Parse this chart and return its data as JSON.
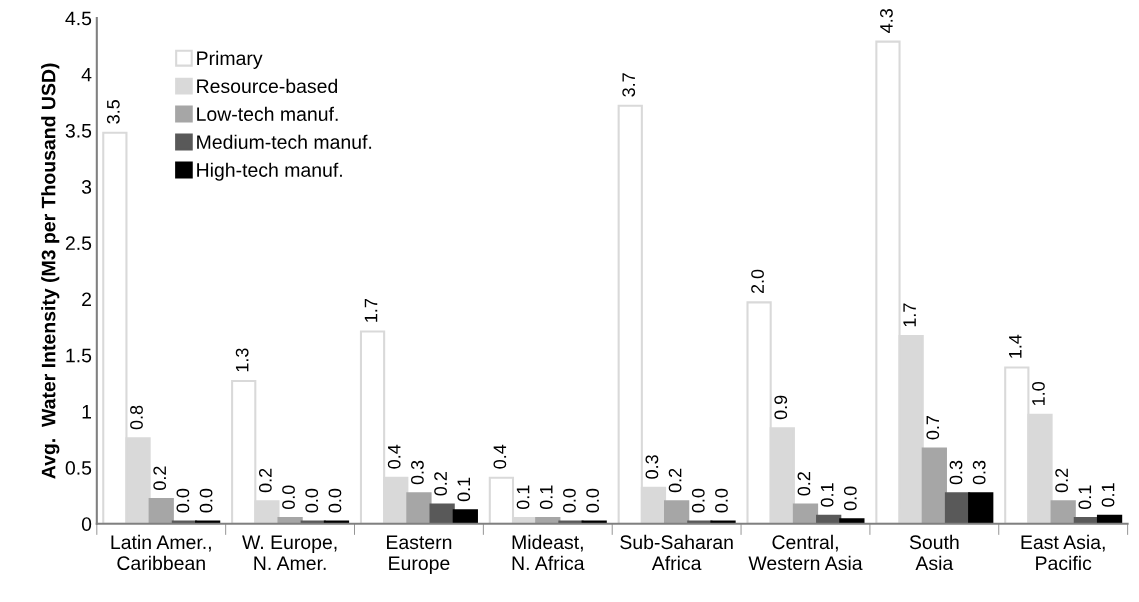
{
  "chart_data": {
    "type": "bar",
    "ylabel": "Avg.  Water Intensity (M3 per Thousand USD)",
    "categories": [
      "Latin Amer., Caribbean",
      "W. Europe, N. Amer.",
      "Eastern Europe",
      "Mideast, N. Africa",
      "Sub-Saharan Africa",
      "Central, Western Asia",
      "South Asia",
      "East Asia, Pacific"
    ],
    "series": [
      {
        "name": "Primary",
        "color": "#ffffff",
        "values": [
          3.48,
          1.27,
          1.71,
          0.41,
          3.72,
          1.97,
          4.29,
          1.39
        ],
        "value_labels": [
          "3.5",
          "1.3",
          "1.7",
          "0.4",
          "3.7",
          "2.0",
          "4.3",
          "1.4"
        ]
      },
      {
        "name": "Resource-based",
        "color": "#d9d9d9",
        "values": [
          0.76,
          0.2,
          0.41,
          0.05,
          0.32,
          0.85,
          1.67,
          0.97
        ],
        "value_labels": [
          "0.8",
          "0.2",
          "0.4",
          "0.1",
          "0.3",
          "0.9",
          "1.7",
          "1.0"
        ]
      },
      {
        "name": "Low-tech manuf.",
        "color": "#a6a6a6",
        "values": [
          0.22,
          0.05,
          0.27,
          0.05,
          0.2,
          0.17,
          0.67,
          0.2
        ],
        "value_labels": [
          "0.2",
          "0.0",
          "0.3",
          "0.1",
          "0.2",
          "0.2",
          "0.7",
          "0.2"
        ]
      },
      {
        "name": "Medium-tech manuf.",
        "color": "#595959",
        "values": [
          0.02,
          0.02,
          0.17,
          0.02,
          0.02,
          0.07,
          0.27,
          0.05
        ],
        "value_labels": [
          "0.0",
          "0.0",
          "0.2",
          "0.0",
          "0.0",
          "0.1",
          "0.3",
          "0.1"
        ]
      },
      {
        "name": "High-tech manuf.",
        "color": "#000000",
        "values": [
          0.02,
          0.02,
          0.12,
          0.02,
          0.02,
          0.04,
          0.27,
          0.07
        ],
        "value_labels": [
          "0.0",
          "0.0",
          "0.1",
          "0.0",
          "0.0",
          "0.0",
          "0.3",
          "0.1"
        ]
      }
    ],
    "ylim": [
      0,
      4.5
    ],
    "yticks": [
      0,
      0.5,
      1,
      1.5,
      2,
      2.5,
      3,
      3.5,
      4,
      4.5
    ],
    "grid": false,
    "legend": "top left"
  }
}
